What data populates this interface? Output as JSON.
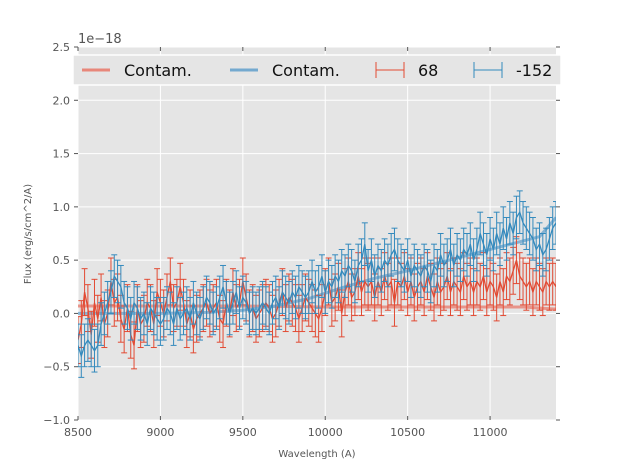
{
  "chart_data": {
    "type": "line",
    "title": "",
    "xlabel": "Wavelength (A)",
    "ylabel": "Flux (erg/s/cm^2/A)",
    "offset_text": "1e−18",
    "xlim": [
      8500,
      11400
    ],
    "ylim": [
      -1.0,
      2.5
    ],
    "y_scale_note": "values in units of 1e-18",
    "grid": true,
    "legend_position": "top",
    "xticks": [
      8500,
      9000,
      9500,
      10000,
      10500,
      11000
    ],
    "xtick_labels": [
      "8500",
      "9000",
      "9500",
      "10000",
      "10500",
      "11000"
    ],
    "yticks": [
      -1.0,
      -0.5,
      0.0,
      0.5,
      1.0,
      1.5,
      2.0,
      2.5
    ],
    "ytick_labels": [
      "−1.0",
      "−0.5",
      "0.0",
      "0.5",
      "1.0",
      "1.5",
      "2.0",
      "2.5"
    ],
    "legend": [
      {
        "label": "Contam.",
        "kind": "line",
        "color": "#E8877A"
      },
      {
        "label": "Contam.",
        "kind": "line",
        "color": "#74A9CF"
      },
      {
        "label": "68",
        "kind": "errorbar",
        "color": "#E24A33"
      },
      {
        "label": "-152",
        "kind": "errorbar",
        "color": "#348ABD"
      }
    ],
    "series": [
      {
        "name": "Contam. (68)",
        "kind": "contam",
        "color": "#E8877A",
        "x": [
          8500,
          9000,
          9500,
          10000,
          10500,
          11000,
          11200,
          11400
        ],
        "y": [
          0.07,
          0.07,
          0.07,
          0.06,
          0.06,
          0.06,
          0.06,
          0.04
        ]
      },
      {
        "name": "Contam. (-152)",
        "kind": "contam",
        "color": "#74A9CF",
        "x": [
          8500,
          8800,
          9000,
          9300,
          9500,
          9700,
          9900,
          10100,
          10300,
          10500,
          10700,
          10900,
          11100,
          11300,
          11400
        ],
        "y": [
          0.0,
          0.0,
          0.0,
          0.01,
          0.03,
          0.07,
          0.14,
          0.24,
          0.33,
          0.4,
          0.48,
          0.56,
          0.64,
          0.72,
          0.9
        ]
      },
      {
        "name": "68",
        "kind": "errorbar",
        "color": "#E24A33",
        "x": [
          8500,
          8520,
          8540,
          8560,
          8580,
          8600,
          8620,
          8640,
          8660,
          8680,
          8700,
          8720,
          8740,
          8760,
          8780,
          8800,
          8820,
          8840,
          8860,
          8880,
          8900,
          8920,
          8940,
          8960,
          8980,
          9000,
          9020,
          9040,
          9060,
          9080,
          9100,
          9120,
          9140,
          9160,
          9180,
          9200,
          9220,
          9240,
          9260,
          9280,
          9300,
          9320,
          9340,
          9360,
          9380,
          9400,
          9420,
          9440,
          9460,
          9480,
          9500,
          9520,
          9540,
          9560,
          9580,
          9600,
          9620,
          9640,
          9660,
          9680,
          9700,
          9720,
          9740,
          9760,
          9780,
          9800,
          9820,
          9840,
          9860,
          9880,
          9900,
          9920,
          9940,
          9960,
          9980,
          10000,
          10020,
          10040,
          10060,
          10080,
          10100,
          10120,
          10140,
          10160,
          10180,
          10200,
          10220,
          10240,
          10260,
          10280,
          10300,
          10320,
          10340,
          10360,
          10380,
          10400,
          10420,
          10440,
          10460,
          10480,
          10500,
          10520,
          10540,
          10560,
          10580,
          10600,
          10620,
          10640,
          10660,
          10680,
          10700,
          10720,
          10740,
          10760,
          10780,
          10800,
          10820,
          10840,
          10860,
          10880,
          10900,
          10920,
          10940,
          10960,
          10980,
          11000,
          11020,
          11040,
          11060,
          11080,
          11100,
          11120,
          11140,
          11160,
          11180,
          11200,
          11220,
          11240,
          11260,
          11280,
          11300,
          11320,
          11340,
          11360,
          11380,
          11400
        ],
        "y": [
          -0.25,
          -0.1,
          0.2,
          0.05,
          -0.2,
          0.1,
          -0.05,
          0.15,
          -0.1,
          0.0,
          0.3,
          0.1,
          0.15,
          -0.05,
          -0.15,
          0.05,
          -0.2,
          -0.3,
          0.05,
          -0.1,
          -0.05,
          0.1,
          0.05,
          -0.1,
          0.2,
          0.1,
          0.0,
          0.15,
          0.3,
          0.05,
          0.1,
          0.25,
          0.1,
          -0.1,
          0.0,
          -0.15,
          -0.05,
          0.0,
          0.05,
          0.1,
          0.0,
          0.05,
          0.1,
          -0.05,
          -0.1,
          0.1,
          0.0,
          0.2,
          0.05,
          0.1,
          0.3,
          0.15,
          0.0,
          0.05,
          -0.05,
          0.0,
          0.05,
          0.1,
          0.05,
          -0.05,
          0.0,
          0.1,
          0.2,
          0.05,
          0.15,
          0.1,
          0.05,
          -0.05,
          0.05,
          0.15,
          0.1,
          0.05,
          0.0,
          -0.05,
          0.05,
          0.2,
          0.3,
          0.1,
          0.15,
          0.25,
          0.0,
          0.2,
          0.3,
          0.15,
          0.2,
          0.35,
          0.2,
          0.3,
          0.25,
          0.3,
          0.15,
          0.3,
          0.2,
          0.35,
          0.25,
          0.3,
          0.1,
          0.3,
          0.25,
          0.35,
          0.2,
          0.3,
          0.15,
          0.25,
          0.3,
          0.2,
          0.35,
          0.25,
          0.15,
          0.3,
          0.2,
          0.25,
          0.35,
          0.2,
          0.3,
          0.25,
          0.2,
          0.35,
          0.25,
          0.3,
          0.2,
          0.3,
          0.25,
          0.35,
          0.2,
          0.3,
          0.25,
          0.15,
          0.3,
          0.2,
          0.35,
          0.3,
          0.4,
          0.5,
          0.35,
          0.3,
          0.25,
          0.3,
          0.2,
          0.3,
          0.25,
          0.2,
          0.3,
          0.25,
          0.3,
          0.25
        ],
        "err": 0.22
      },
      {
        "name": "-152",
        "kind": "errorbar",
        "color": "#348ABD",
        "x": [
          8500,
          8520,
          8540,
          8560,
          8580,
          8600,
          8620,
          8640,
          8660,
          8680,
          8700,
          8720,
          8740,
          8760,
          8780,
          8800,
          8820,
          8840,
          8860,
          8880,
          8900,
          8920,
          8940,
          8960,
          8980,
          9000,
          9020,
          9040,
          9060,
          9080,
          9100,
          9120,
          9140,
          9160,
          9180,
          9200,
          9220,
          9240,
          9260,
          9280,
          9300,
          9320,
          9340,
          9360,
          9380,
          9400,
          9420,
          9440,
          9460,
          9480,
          9500,
          9520,
          9540,
          9560,
          9580,
          9600,
          9620,
          9640,
          9660,
          9680,
          9700,
          9720,
          9740,
          9760,
          9780,
          9800,
          9820,
          9840,
          9860,
          9880,
          9900,
          9920,
          9940,
          9960,
          9980,
          10000,
          10020,
          10040,
          10060,
          10080,
          10100,
          10120,
          10140,
          10160,
          10180,
          10200,
          10220,
          10240,
          10260,
          10280,
          10300,
          10320,
          10340,
          10360,
          10380,
          10400,
          10420,
          10440,
          10460,
          10480,
          10500,
          10520,
          10540,
          10560,
          10580,
          10600,
          10620,
          10640,
          10660,
          10680,
          10700,
          10720,
          10740,
          10760,
          10780,
          10800,
          10820,
          10840,
          10860,
          10880,
          10900,
          10920,
          10940,
          10960,
          10980,
          11000,
          11020,
          11040,
          11060,
          11080,
          11100,
          11120,
          11140,
          11160,
          11180,
          11200,
          11220,
          11240,
          11260,
          11280,
          11300,
          11320,
          11340,
          11360,
          11380,
          11400
        ],
        "y": [
          -0.3,
          -0.4,
          -0.3,
          -0.25,
          -0.3,
          -0.35,
          -0.3,
          -0.1,
          0.0,
          0.1,
          0.2,
          0.35,
          0.3,
          0.25,
          0.1,
          0.05,
          -0.05,
          0.1,
          0.05,
          -0.05,
          0.0,
          -0.1,
          0.05,
          0.0,
          -0.05,
          -0.1,
          -0.05,
          0.05,
          0.0,
          -0.1,
          0.05,
          -0.05,
          0.0,
          0.05,
          -0.05,
          0.1,
          0.0,
          -0.05,
          0.05,
          0.15,
          0.1,
          0.0,
          0.05,
          0.15,
          0.25,
          0.1,
          0.0,
          0.1,
          0.2,
          0.05,
          0.15,
          0.1,
          0.0,
          0.05,
          0.0,
          0.05,
          0.1,
          0.05,
          0.0,
          0.1,
          0.15,
          0.05,
          0.2,
          0.15,
          0.1,
          0.2,
          0.15,
          0.25,
          0.2,
          0.15,
          0.2,
          0.3,
          0.2,
          0.25,
          0.35,
          0.2,
          0.3,
          0.25,
          0.35,
          0.3,
          0.4,
          0.35,
          0.45,
          0.4,
          0.3,
          0.45,
          0.5,
          0.65,
          0.4,
          0.5,
          0.35,
          0.45,
          0.4,
          0.5,
          0.45,
          0.55,
          0.6,
          0.5,
          0.45,
          0.4,
          0.5,
          0.35,
          0.45,
          0.4,
          0.35,
          0.45,
          0.4,
          0.3,
          0.45,
          0.4,
          0.55,
          0.45,
          0.5,
          0.6,
          0.45,
          0.55,
          0.5,
          0.6,
          0.55,
          0.65,
          0.5,
          0.6,
          0.75,
          0.65,
          0.55,
          0.7,
          0.6,
          0.75,
          0.65,
          0.8,
          0.7,
          0.85,
          0.75,
          0.9,
          0.95,
          0.85,
          0.8,
          0.75,
          0.7,
          0.6,
          0.65,
          0.55,
          0.6,
          0.7,
          0.8,
          0.85
        ],
        "err": 0.2
      }
    ]
  }
}
